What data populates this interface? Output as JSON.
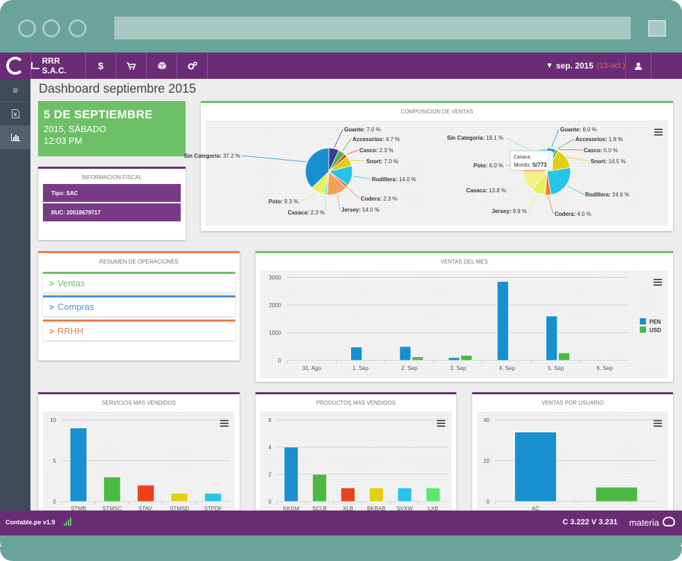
{
  "colors": {
    "purple": "#6b2c76",
    "green": "#6dc066",
    "orange": "#f07a4a",
    "blue": "#4a8fd4",
    "sidebar": "#3f4b58",
    "pen": "#1a8fd0",
    "usd": "#4cb942",
    "frame": "#6aa39a",
    "period_range": "#ff5a5a"
  },
  "topbar": {
    "logo_icon": "contable-logo-icon",
    "company": "RRR S.A.C.",
    "company_icon": "bar-chart-icon",
    "nav_icons": [
      {
        "name": "dollar-icon",
        "glyph": "$"
      },
      {
        "name": "cart-icon",
        "glyph": "🛒"
      },
      {
        "name": "box-icon",
        "glyph": "⬢"
      },
      {
        "name": "gears-icon",
        "glyph": "⚙"
      }
    ],
    "period_label": "sep. 2015",
    "period_range": "(13-oct.)",
    "filter_icon": "filter-icon",
    "user_icon": "user-icon"
  },
  "sidebar": {
    "items": [
      {
        "name": "menu-icon",
        "glyph": "≡"
      },
      {
        "name": "excel-file-icon",
        "glyph": "▯"
      },
      {
        "name": "chart-icon",
        "glyph": "▥"
      }
    ]
  },
  "page": {
    "title": "Dashboard septiembre 2015"
  },
  "date_card": {
    "day": "5 DE SEPTIEMBRE",
    "weekday": "2015, SÁBADO",
    "time": "12:03 PM"
  },
  "fiscal": {
    "title": "INFORMACION FISCAL",
    "tipo": "Tipo: SAC",
    "ruc": "RUC: 20518679717"
  },
  "operations": {
    "title": "RESUMEN DE OPERACIONES",
    "items": [
      {
        "label": "Ventas",
        "color": "#6dc066"
      },
      {
        "label": "Compras",
        "color": "#4a8fd4"
      },
      {
        "label": "RRHH",
        "color": "#f07a4a"
      }
    ]
  },
  "composicion": {
    "title": "COMPOSICION DE VENTAS",
    "tooltip_title": "Casaca",
    "tooltip_value_label": "Monto:",
    "tooltip_value": "S/773"
  },
  "ventas_mes": {
    "title": "VENTAS DEL MES"
  },
  "servicios": {
    "title": "SERVICIOS MAS VENDIDOS"
  },
  "productos": {
    "title": "PRODUCTOS MAS VENDIDOS"
  },
  "usuarios": {
    "title": "VENTAS POR USUARIO"
  },
  "footer": {
    "version": "Contable.pe v1.9",
    "signal_icon": "signal-icon",
    "cv": "C 3.222 V 3.231",
    "brand": "materia",
    "cloud_icon": "cloud-icon"
  },
  "chart_data": [
    {
      "type": "pie",
      "title": "",
      "labels": [
        "Sin Categoría",
        "Guante",
        "Accesorios",
        "Casco",
        "Snort",
        "Rodillera",
        "Codera",
        "Jersey",
        "Casaca",
        "Poto"
      ],
      "values": [
        37.2,
        7.0,
        4.7,
        2.3,
        7.0,
        14.0,
        2.3,
        14.0,
        2.3,
        9.3
      ],
      "display": [
        "Sin Categoría: 37.2 %",
        "Guante: 7.0 %",
        "Accesorios: 4.7 %",
        "Casco: 2.3 %",
        "Snort: 7.0 %",
        "Rodillera: 14.0 %",
        "Codera: 2.3 %",
        "Jersey: 14.0 %",
        "Casaca: 2.3 %",
        "Poto: 9.3 %"
      ],
      "colors": [
        "#1a8fd0",
        "#3b3b8f",
        "#4cb942",
        "#e8421e",
        "#e0d010",
        "#29c3e8",
        "#f07a3a",
        "#f5a05a",
        "#8ee8c8",
        "#e8f060"
      ]
    },
    {
      "type": "pie",
      "title": "",
      "labels": [
        "Sin Categoría",
        "Guante",
        "Accesorios",
        "Casco",
        "Snort",
        "Rodillera",
        "Codera",
        "Jersey",
        "Casaca",
        "Poto"
      ],
      "values": [
        19.1,
        6.0,
        1.8,
        0.0,
        14.5,
        24.9,
        4.0,
        9.9,
        13.8,
        6.0
      ],
      "display": [
        "Sin Categoría: 19.1 %",
        "Guante: 6.0 %",
        "Accesorios: 1.8 %",
        "Casco: 0.0 %",
        "Snort: 14.5 %",
        "Rodillera: 24.9 %",
        "Codera: 4.0 %",
        "Jersey: 9.9 %",
        "Casaca: 13.8 %",
        "Poto: 6.0 %"
      ],
      "colors": [
        "#8ee8f0",
        "#1a8fd0",
        "#4cb942",
        "#e8421e",
        "#e0d010",
        "#29c3e8",
        "#f07a3a",
        "#e8f060",
        "#f5f088",
        "#f5a05a"
      ]
    },
    {
      "type": "bar",
      "title": "",
      "categories": [
        "31. Ago",
        "1. Sep",
        "2. Sep",
        "3. Sep",
        "4. Sep",
        "5. Sep",
        "6. Sep"
      ],
      "series": [
        {
          "name": "PEN",
          "values": [
            0,
            480,
            500,
            100,
            2850,
            1600,
            0
          ],
          "color": "#1a8fd0"
        },
        {
          "name": "USD",
          "values": [
            0,
            0,
            130,
            180,
            0,
            270,
            0
          ],
          "color": "#4cb942"
        }
      ],
      "yticks": [
        0,
        1000,
        2000,
        3000
      ],
      "ylim": [
        0,
        3000
      ],
      "legend": "right"
    },
    {
      "type": "bar",
      "title": "",
      "categories": [
        "STMB",
        "STMSC",
        "STAV.",
        "STMSD",
        "STPDF"
      ],
      "values": [
        9,
        3,
        2,
        1,
        1
      ],
      "colors": [
        "#1a8fd0",
        "#4cb942",
        "#e8421e",
        "#e0d010",
        "#29c3e8"
      ],
      "yticks": [
        0,
        5,
        10
      ],
      "ylim": [
        0,
        10
      ]
    },
    {
      "type": "bar",
      "title": "",
      "categories": [
        "KKGM",
        "SCLB",
        "XLB",
        "BKBAB",
        "SVXW",
        "LXB"
      ],
      "values": [
        4,
        2,
        1,
        1,
        1,
        1
      ],
      "colors": [
        "#1a8fd0",
        "#4cb942",
        "#e8421e",
        "#e0d010",
        "#29c3e8",
        "#5ee86a"
      ],
      "yticks": [
        0,
        2,
        4,
        6
      ],
      "ylim": [
        0,
        6
      ]
    },
    {
      "type": "bar",
      "title": "",
      "categories": [
        "AC",
        ""
      ],
      "values": [
        34,
        7
      ],
      "colors": [
        "#1a8fd0",
        "#4cb942"
      ],
      "yticks": [
        0,
        20,
        40
      ],
      "ylim": [
        0,
        40
      ]
    }
  ]
}
